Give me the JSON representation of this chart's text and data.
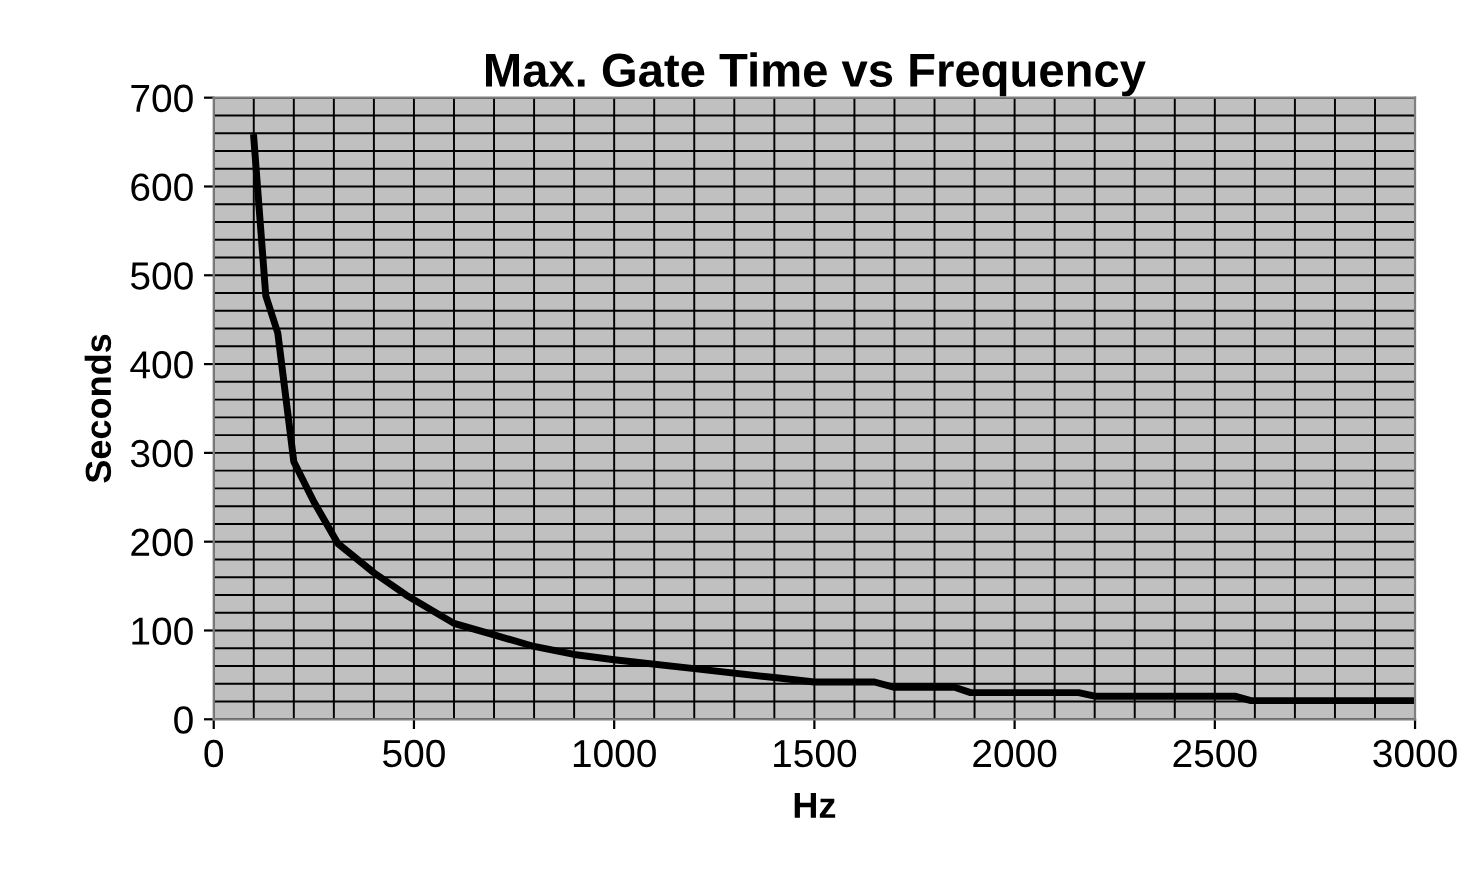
{
  "chart_data": {
    "type": "line",
    "title": "Max. Gate Time vs Frequency",
    "xlabel": "Hz",
    "ylabel": "Seconds",
    "x": [
      100,
      130,
      160,
      200,
      250,
      310,
      400,
      480,
      600,
      700,
      800,
      900,
      1000,
      1200,
      1400,
      1500,
      1650,
      1700,
      1850,
      1890,
      2160,
      2200,
      2550,
      2590,
      3000
    ],
    "series": [
      {
        "color": "#000000",
        "values": [
          655,
          477,
          435,
          290,
          245,
          198,
          165,
          140,
          108,
          95,
          82,
          73,
          67,
          57,
          47,
          42,
          42,
          36,
          36,
          30,
          30,
          26,
          26,
          21,
          21
        ]
      }
    ],
    "xlim": [
      0,
      3000
    ],
    "xticks": [
      0,
      500,
      1000,
      1500,
      2000,
      2500,
      3000
    ],
    "ylim": [
      0,
      700
    ],
    "yticks": [
      0,
      100,
      200,
      300,
      400,
      500,
      600,
      700
    ],
    "grid": true,
    "marker": "none",
    "line_style": "solid"
  }
}
